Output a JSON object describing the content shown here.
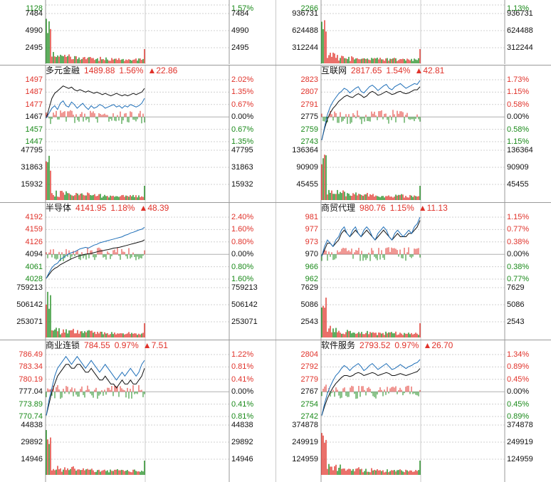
{
  "colors": {
    "up": "#e0322a",
    "down": "#1a8a1a",
    "price": "#1f6fb8",
    "avg": "#111111",
    "grid": "#d0d0d0"
  },
  "panels": [
    {
      "id": "top-left-partial",
      "name": "",
      "price": "",
      "pct": "",
      "change": "",
      "price_labels": [
        {
          "v": "1128",
          "c": "green"
        }
      ],
      "pct_labels": [
        {
          "v": "1.57%",
          "c": "green"
        }
      ],
      "vol_labels": [
        "7484",
        "4990",
        "2495"
      ],
      "vol_labels_r": [
        "7484",
        "4990",
        "2495"
      ],
      "partial": true
    },
    {
      "id": "top-right-partial",
      "name": "",
      "price": "",
      "pct": "",
      "change": "",
      "price_labels": [
        {
          "v": "2266",
          "c": "green"
        }
      ],
      "pct_labels": [
        {
          "v": "1.13%",
          "c": "green"
        }
      ],
      "vol_labels": [
        "936731",
        "624488",
        "312244"
      ],
      "vol_labels_r": [
        "936731",
        "624488",
        "312244"
      ],
      "partial": true
    },
    {
      "id": "duoyuan-jinrong",
      "name": "多元金融",
      "price": "1489.88",
      "pct": "1.56%",
      "change": "▲22.86",
      "price_labels": [
        {
          "v": "1497",
          "c": "red"
        },
        {
          "v": "1487",
          "c": "red"
        },
        {
          "v": "1477",
          "c": "red"
        },
        {
          "v": "1467",
          "c": "black"
        },
        {
          "v": "1457",
          "c": "green"
        },
        {
          "v": "1447",
          "c": "green"
        }
      ],
      "pct_labels": [
        {
          "v": "2.02%",
          "c": "red"
        },
        {
          "v": "1.35%",
          "c": "red"
        },
        {
          "v": "0.67%",
          "c": "red"
        },
        {
          "v": "0.00%",
          "c": "black"
        },
        {
          "v": "0.67%",
          "c": "green"
        },
        {
          "v": "1.35%",
          "c": "green"
        }
      ],
      "vol_labels": [
        "47795",
        "31863",
        "15932"
      ],
      "vol_labels_r": [
        "47795",
        "31863",
        "15932"
      ],
      "series_price": [
        1466,
        1470,
        1474,
        1476,
        1473,
        1478,
        1480,
        1476,
        1475,
        1479,
        1477,
        1474,
        1476,
        1478,
        1475,
        1473,
        1476,
        1474,
        1475,
        1477,
        1476,
        1474,
        1475,
        1476,
        1477,
        1475,
        1476,
        1474,
        1476,
        1475,
        1477,
        1476,
        1475,
        1476,
        1478,
        1482
      ],
      "series_avg": [
        1466,
        1474,
        1482,
        1486,
        1488,
        1490,
        1492,
        1491,
        1490,
        1491,
        1489,
        1488,
        1489,
        1488,
        1487,
        1488,
        1487,
        1486,
        1487,
        1486,
        1485,
        1486,
        1485,
        1484,
        1485,
        1486,
        1485,
        1484,
        1485,
        1484,
        1485,
        1486,
        1485,
        1486,
        1487,
        1490
      ]
    },
    {
      "id": "hulianwang",
      "name": "互联网",
      "price": "2817.65",
      "pct": "1.54%",
      "change": "▲42.81",
      "price_labels": [
        {
          "v": "2823",
          "c": "red"
        },
        {
          "v": "2807",
          "c": "red"
        },
        {
          "v": "2791",
          "c": "red"
        },
        {
          "v": "2775",
          "c": "black"
        },
        {
          "v": "2759",
          "c": "green"
        },
        {
          "v": "2743",
          "c": "green"
        }
      ],
      "pct_labels": [
        {
          "v": "1.73%",
          "c": "red"
        },
        {
          "v": "1.15%",
          "c": "red"
        },
        {
          "v": "0.58%",
          "c": "red"
        },
        {
          "v": "0.00%",
          "c": "black"
        },
        {
          "v": "0.58%",
          "c": "green"
        },
        {
          "v": "1.15%",
          "c": "green"
        }
      ],
      "vol_labels": [
        "136364",
        "90909",
        "45455"
      ],
      "vol_labels_r": [
        "136364",
        "90909",
        "45455"
      ],
      "series_price": [
        2745,
        2762,
        2778,
        2788,
        2795,
        2800,
        2805,
        2808,
        2812,
        2810,
        2806,
        2809,
        2812,
        2814,
        2808,
        2806,
        2810,
        2814,
        2816,
        2813,
        2809,
        2812,
        2815,
        2817,
        2812,
        2810,
        2814,
        2816,
        2818,
        2815,
        2812,
        2814,
        2816,
        2818,
        2817,
        2822
      ],
      "series_avg": [
        2745,
        2760,
        2772,
        2780,
        2786,
        2790,
        2795,
        2798,
        2801,
        2803,
        2801,
        2800,
        2803,
        2805,
        2803,
        2800,
        2802,
        2806,
        2808,
        2806,
        2803,
        2804,
        2806,
        2808,
        2806,
        2804,
        2805,
        2807,
        2808,
        2806,
        2805,
        2806,
        2808,
        2810,
        2810,
        2814
      ]
    },
    {
      "id": "bandaoti",
      "name": "半导体",
      "price": "4141.95",
      "pct": "1.18%",
      "change": "▲48.39",
      "price_labels": [
        {
          "v": "4192",
          "c": "red"
        },
        {
          "v": "4159",
          "c": "red"
        },
        {
          "v": "4126",
          "c": "red"
        },
        {
          "v": "4094",
          "c": "black"
        },
        {
          "v": "4061",
          "c": "green"
        },
        {
          "v": "4028",
          "c": "green"
        }
      ],
      "pct_labels": [
        {
          "v": "2.40%",
          "c": "red"
        },
        {
          "v": "1.60%",
          "c": "red"
        },
        {
          "v": "0.80%",
          "c": "red"
        },
        {
          "v": "0.00%",
          "c": "black"
        },
        {
          "v": "0.80%",
          "c": "green"
        },
        {
          "v": "1.60%",
          "c": "green"
        }
      ],
      "vol_labels": [
        "759213",
        "506142",
        "253071"
      ],
      "vol_labels_r": [
        "759213",
        "506142",
        "253071"
      ],
      "series_price": [
        4030,
        4045,
        4058,
        4066,
        4070,
        4080,
        4085,
        4090,
        4095,
        4098,
        4100,
        4104,
        4108,
        4110,
        4112,
        4110,
        4114,
        4118,
        4120,
        4124,
        4126,
        4128,
        4130,
        4132,
        4134,
        4136,
        4138,
        4140,
        4144,
        4146,
        4150,
        4152,
        4155,
        4158,
        4160,
        4165
      ],
      "series_avg": [
        4030,
        4040,
        4050,
        4056,
        4060,
        4066,
        4070,
        4074,
        4078,
        4082,
        4085,
        4088,
        4090,
        4092,
        4094,
        4095,
        4096,
        4098,
        4100,
        4102,
        4103,
        4105,
        4106,
        4108,
        4110,
        4111,
        4112,
        4114,
        4116,
        4118,
        4120,
        4122,
        4124,
        4126,
        4128,
        4132
      ]
    },
    {
      "id": "shangmao-daili",
      "name": "商贸代理",
      "price": "980.76",
      "pct": "1.15%",
      "change": "▲11.13",
      "price_labels": [
        {
          "v": "981",
          "c": "red"
        },
        {
          "v": "977",
          "c": "red"
        },
        {
          "v": "973",
          "c": "red"
        },
        {
          "v": "970",
          "c": "black"
        },
        {
          "v": "966",
          "c": "green"
        },
        {
          "v": "962",
          "c": "green"
        }
      ],
      "pct_labels": [
        {
          "v": "1.15%",
          "c": "red"
        },
        {
          "v": "0.77%",
          "c": "red"
        },
        {
          "v": "0.38%",
          "c": "red"
        },
        {
          "v": "0.00%",
          "c": "black"
        },
        {
          "v": "0.38%",
          "c": "green"
        },
        {
          "v": "0.77%",
          "c": "green"
        }
      ],
      "vol_labels": [
        "7629",
        "5086",
        "2543"
      ],
      "vol_labels_r": [
        "7629",
        "5086",
        "2543"
      ],
      "series_price": [
        969,
        972,
        974,
        973,
        972,
        974,
        975,
        977,
        978,
        976,
        975,
        977,
        978,
        976,
        975,
        977,
        978,
        977,
        975,
        974,
        976,
        977,
        978,
        977,
        975,
        974,
        976,
        977,
        976,
        975,
        976,
        977,
        976,
        978,
        979,
        981
      ],
      "series_avg": [
        969,
        971,
        973,
        973,
        972,
        973,
        974,
        976,
        977,
        976,
        975,
        976,
        977,
        976,
        975,
        976,
        977,
        976,
        975,
        974,
        975,
        976,
        977,
        976,
        975,
        974,
        975,
        976,
        975,
        975,
        975,
        976,
        976,
        977,
        978,
        980
      ]
    },
    {
      "id": "shangye-liansuo",
      "name": "商业连锁",
      "price": "784.55",
      "pct": "0.97%",
      "change": "▲7.51",
      "price_labels": [
        {
          "v": "786.49",
          "c": "red"
        },
        {
          "v": "783.34",
          "c": "red"
        },
        {
          "v": "780.19",
          "c": "red"
        },
        {
          "v": "777.04",
          "c": "black"
        },
        {
          "v": "773.89",
          "c": "green"
        },
        {
          "v": "770.74",
          "c": "green"
        }
      ],
      "pct_labels": [
        {
          "v": "1.22%",
          "c": "red"
        },
        {
          "v": "0.81%",
          "c": "red"
        },
        {
          "v": "0.41%",
          "c": "red"
        },
        {
          "v": "0.00%",
          "c": "black"
        },
        {
          "v": "0.41%",
          "c": "green"
        },
        {
          "v": "0.81%",
          "c": "green"
        }
      ],
      "vol_labels": [
        "44838",
        "29892",
        "14946"
      ],
      "vol_labels_r": [
        "44838",
        "29892",
        "14946"
      ],
      "series_price": [
        771,
        775,
        778,
        781,
        783,
        784,
        785,
        786,
        785,
        784,
        785,
        786,
        785,
        784,
        783,
        784,
        785,
        784,
        783,
        782,
        783,
        784,
        783,
        782,
        781,
        780,
        781,
        782,
        781,
        782,
        783,
        782,
        781,
        782,
        784,
        785
      ],
      "series_avg": [
        771,
        774,
        777,
        779,
        781,
        782,
        783,
        784,
        784,
        783,
        783,
        784,
        784,
        783,
        782,
        782,
        783,
        782,
        781,
        780,
        780,
        781,
        780,
        779,
        779,
        778,
        779,
        780,
        779,
        779,
        780,
        779,
        779,
        780,
        781,
        783
      ]
    },
    {
      "id": "ruanjian-fuwu",
      "name": "软件服务",
      "price": "2793.52",
      "pct": "0.97%",
      "change": "▲26.70",
      "price_labels": [
        {
          "v": "2804",
          "c": "red"
        },
        {
          "v": "2792",
          "c": "red"
        },
        {
          "v": "2779",
          "c": "red"
        },
        {
          "v": "2767",
          "c": "black"
        },
        {
          "v": "2754",
          "c": "green"
        },
        {
          "v": "2742",
          "c": "green"
        }
      ],
      "pct_labels": [
        {
          "v": "1.34%",
          "c": "red"
        },
        {
          "v": "0.89%",
          "c": "red"
        },
        {
          "v": "0.45%",
          "c": "red"
        },
        {
          "v": "0.00%",
          "c": "black"
        },
        {
          "v": "0.45%",
          "c": "green"
        },
        {
          "v": "0.89%",
          "c": "green"
        }
      ],
      "vol_labels": [
        "374878",
        "249919",
        "124959"
      ],
      "vol_labels_r": [
        "374878",
        "249919",
        "124959"
      ],
      "series_price": [
        2743,
        2755,
        2765,
        2772,
        2778,
        2783,
        2786,
        2790,
        2793,
        2791,
        2788,
        2791,
        2793,
        2795,
        2792,
        2788,
        2790,
        2793,
        2795,
        2792,
        2789,
        2791,
        2793,
        2795,
        2792,
        2789,
        2790,
        2792,
        2794,
        2792,
        2790,
        2792,
        2793,
        2795,
        2796,
        2799
      ],
      "series_avg": [
        2743,
        2752,
        2760,
        2766,
        2771,
        2775,
        2778,
        2781,
        2783,
        2783,
        2782,
        2783,
        2785,
        2786,
        2785,
        2783,
        2784,
        2785,
        2786,
        2785,
        2783,
        2784,
        2785,
        2786,
        2785,
        2783,
        2783,
        2784,
        2785,
        2784,
        2783,
        2784,
        2785,
        2786,
        2787,
        2790
      ]
    }
  ]
}
